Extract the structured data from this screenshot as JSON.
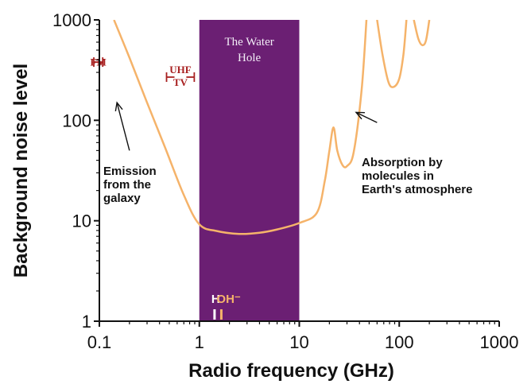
{
  "chart_data": {
    "type": "line",
    "xlabel": "Radio frequency (GHz)",
    "ylabel": "Background noise level",
    "x_scale": "log",
    "y_scale": "log",
    "xlim": [
      0.1,
      1000
    ],
    "ylim": [
      1,
      1000
    ],
    "x_ticks": [
      "0.1",
      "1",
      "10",
      "100",
      "1000"
    ],
    "y_ticks": [
      "1",
      "10",
      "100",
      "1000"
    ],
    "grid": false,
    "colors": {
      "curve": "#f5b36a",
      "band": "#6b1f73",
      "red_labels": "#a82020",
      "H_line": "#ffffff",
      "OH_line": "#f5b36a"
    },
    "series": [
      {
        "points": [
          [
            0.14,
            1000
          ],
          [
            0.2,
            420
          ],
          [
            0.3,
            150
          ],
          [
            0.45,
            55
          ],
          [
            0.7,
            18
          ],
          [
            1.0,
            9.2
          ],
          [
            1.5,
            7.9
          ],
          [
            2.5,
            7.4
          ],
          [
            4.0,
            7.6
          ],
          [
            6.0,
            8.2
          ],
          [
            10,
            9.5
          ],
          [
            15,
            12
          ],
          [
            18,
            25
          ],
          [
            20,
            50
          ],
          [
            22,
            85
          ],
          [
            24,
            50
          ],
          [
            27,
            36
          ],
          [
            30,
            35
          ],
          [
            35,
            48
          ],
          [
            42,
            200
          ],
          [
            47,
            1000
          ]
        ]
      },
      {
        "points": [
          [
            60,
            1000
          ],
          [
            68,
            450
          ],
          [
            78,
            240
          ],
          [
            88,
            215
          ],
          [
            100,
            260
          ],
          [
            110,
            450
          ],
          [
            118,
            1000
          ]
        ]
      },
      {
        "points": [
          [
            140,
            1000
          ],
          [
            155,
            650
          ],
          [
            170,
            560
          ],
          [
            185,
            620
          ],
          [
            200,
            1000
          ]
        ]
      }
    ],
    "band": {
      "x_range": [
        1,
        10
      ],
      "label": [
        "The Water",
        "Hole"
      ]
    },
    "ranges": [
      {
        "label": "FM",
        "x_range": [
          0.088,
          0.108
        ],
        "y": 380
      },
      {
        "label": [
          "UHF",
          "TV"
        ],
        "x_range": [
          0.47,
          0.89
        ],
        "y": 250
      }
    ],
    "lines": [
      {
        "label": "H",
        "x": 1.42
      },
      {
        "label": "OH⁻",
        "x": 1.66
      }
    ],
    "annotations": [
      {
        "lines": [
          "Emission",
          "from the",
          "galaxy"
        ],
        "arrow_from": [
          0.2,
          50
        ],
        "arrow_to": [
          0.15,
          150
        ]
      },
      {
        "lines": [
          "Absorption by",
          "molecules in",
          "Earth's atmosphere"
        ],
        "arrow_from": [
          60,
          95
        ],
        "arrow_to": [
          37,
          120
        ]
      }
    ]
  }
}
